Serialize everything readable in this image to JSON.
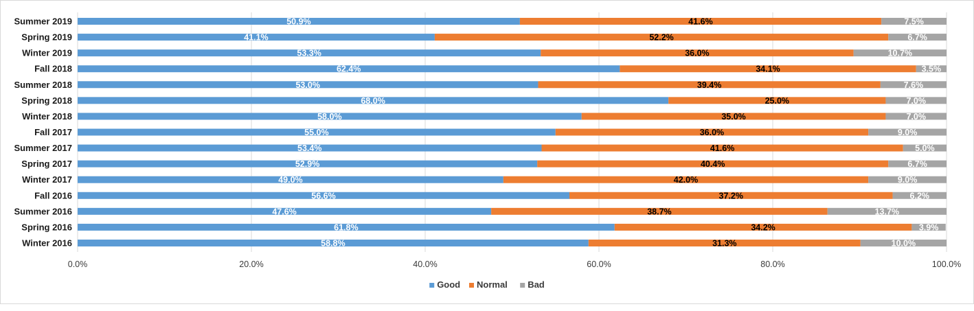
{
  "chart_data": {
    "type": "bar",
    "orientation": "horizontal",
    "stacked": "percent",
    "categories": [
      "Summer 2019",
      "Spring 2019",
      "Winter 2019",
      "Fall 2018",
      "Summer 2018",
      "Spring 2018",
      "Winter 2018",
      "Fall 2017",
      "Summer 2017",
      "Spring 2017",
      "Winter 2017",
      "Fall 2016",
      "Summer 2016",
      "Spring 2016",
      "Winter 2016"
    ],
    "series": [
      {
        "name": "Good",
        "color": "#5b9bd5",
        "label_color": "#ffffff",
        "values": [
          50.9,
          41.1,
          53.3,
          62.4,
          53.0,
          68.0,
          58.0,
          55.0,
          53.4,
          52.9,
          49.0,
          56.6,
          47.6,
          61.8,
          58.8
        ]
      },
      {
        "name": "Normal",
        "color": "#ed7d31",
        "label_color": "#000000",
        "values": [
          41.6,
          52.2,
          36.0,
          34.1,
          39.4,
          25.0,
          35.0,
          36.0,
          41.6,
          40.4,
          42.0,
          37.2,
          38.7,
          34.2,
          31.3
        ]
      },
      {
        "name": "Bad",
        "color": "#a5a5a5",
        "label_color": "#ffffff",
        "values": [
          7.5,
          6.7,
          10.7,
          3.5,
          7.6,
          7.0,
          7.0,
          9.0,
          5.0,
          6.7,
          9.0,
          6.2,
          13.7,
          3.9,
          10.0
        ]
      }
    ],
    "data_labels": [
      [
        "50.9%",
        "41.6%",
        "7.5%"
      ],
      [
        "41.1%",
        "52.2%",
        "6.7%"
      ],
      [
        "53.3%",
        "36.0%",
        "10.7%"
      ],
      [
        "62.4%",
        "34.1%",
        "3.5%"
      ],
      [
        "53.0%",
        "39.4%",
        "7.6%"
      ],
      [
        "68.0%",
        "25.0%",
        "7.0%"
      ],
      [
        "58.0%",
        "35.0%",
        "7.0%"
      ],
      [
        "55.0%",
        "36.0%",
        "9.0%"
      ],
      [
        "53.4%",
        "41.6%",
        "5.0%"
      ],
      [
        "52.9%",
        "40.4%",
        "6.7%"
      ],
      [
        "49.0%",
        "42.0%",
        "9.0%"
      ],
      [
        "56.6%",
        "37.2%",
        "6.2%"
      ],
      [
        "47.6%",
        "38.7%",
        "13.7%"
      ],
      [
        "61.8%",
        "34.2%",
        "3.9%"
      ],
      [
        "58.8%",
        "31.3%",
        "10.0%"
      ]
    ],
    "xticks": [
      0,
      20,
      40,
      60,
      80,
      100
    ],
    "xtick_labels": [
      "0.0%",
      "20.0%",
      "40.0%",
      "60.0%",
      "80.0%",
      "100.0%"
    ],
    "xlim": [
      0,
      100
    ],
    "grid": "vertical",
    "legend_placement": "bottom"
  }
}
